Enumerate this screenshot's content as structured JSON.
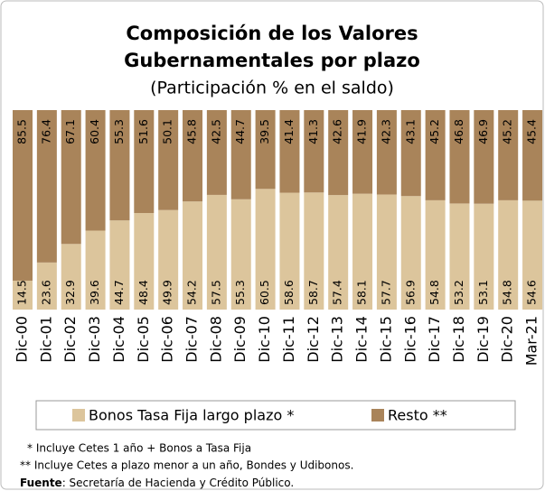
{
  "chart_data": {
    "type": "stacked_bar",
    "title_lines": [
      "Composición de los Valores",
      "Gubernamentales por plazo"
    ],
    "subtitle": "(Participación % en el saldo)",
    "categories": [
      "Dic-00",
      "Dic-01",
      "Dic-02",
      "Dic-03",
      "Dic-04",
      "Dic-05",
      "Dic-06",
      "Dic-07",
      "Dic-08",
      "Dic-09",
      "Dic-10",
      "Dic-11",
      "Dic-12",
      "Dic-13",
      "Dic-14",
      "Dic-15",
      "Dic-16",
      "Dic-17",
      "Dic-18",
      "Dic-19",
      "Dic-20",
      "Mar-21"
    ],
    "series": [
      {
        "name": "Bonos Tasa Fija largo plazo *",
        "color": "#dcc59c",
        "values": [
          14.5,
          23.6,
          32.9,
          39.6,
          44.7,
          48.4,
          49.9,
          54.2,
          57.5,
          55.3,
          60.5,
          58.6,
          58.7,
          57.4,
          58.1,
          57.7,
          56.9,
          54.8,
          53.2,
          53.1,
          54.8,
          54.6
        ]
      },
      {
        "name": "Resto **",
        "color": "#a9845a",
        "values": [
          85.5,
          76.4,
          67.1,
          60.4,
          55.3,
          51.6,
          50.1,
          45.8,
          42.5,
          44.7,
          39.5,
          41.4,
          41.3,
          42.6,
          41.9,
          42.3,
          43.1,
          45.2,
          46.8,
          46.9,
          45.2,
          45.4
        ]
      }
    ],
    "footnotes": [
      "* Incluye Cetes 1 año + Bonos a Tasa Fija",
      "** Incluye Cetes a plazo menor a un año, Bondes y Udibonos."
    ],
    "source_label": "Fuente",
    "source": ": Secretaría de Hacienda y Crédito Público."
  }
}
